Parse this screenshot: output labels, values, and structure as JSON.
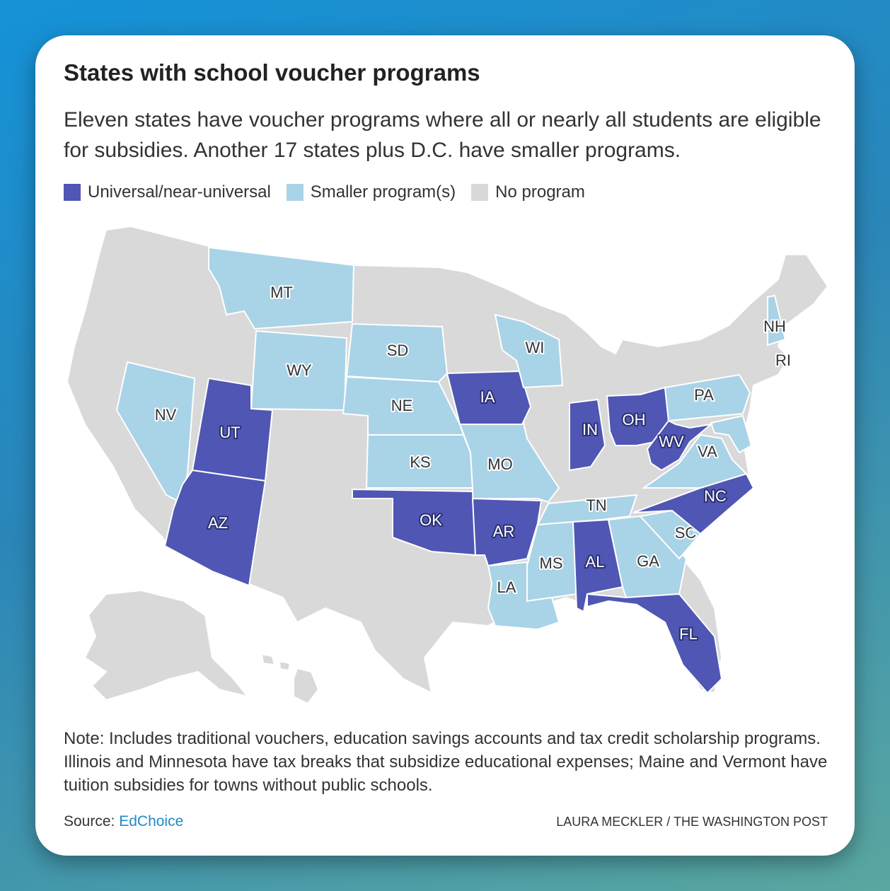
{
  "header": {
    "title": "States with school voucher programs",
    "subtitle": "Eleven states have voucher programs where all or nearly all students are eligible for subsidies. Another 17 states plus D.C. have smaller programs."
  },
  "legend": [
    {
      "label": "Universal/near-universal",
      "color": "#4f56b3"
    },
    {
      "label": "Smaller program(s)",
      "color": "#a9d3e7"
    },
    {
      "label": "No program",
      "color": "#d9d9d9"
    }
  ],
  "states": [
    {
      "label": "MT",
      "color": "#a9d3e7"
    },
    {
      "label": "WY",
      "color": "#a9d3e7"
    },
    {
      "label": "SD",
      "color": "#a9d3e7"
    },
    {
      "label": "NE",
      "color": "#a9d3e7"
    },
    {
      "label": "KS",
      "color": "#a9d3e7"
    },
    {
      "label": "MO",
      "color": "#a9d3e7"
    },
    {
      "label": "IA",
      "color": "#4f56b3"
    },
    {
      "label": "WI",
      "color": "#a9d3e7"
    },
    {
      "label": "NV",
      "color": "#a9d3e7"
    },
    {
      "label": "UT",
      "color": "#4f56b3"
    },
    {
      "label": "AZ",
      "color": "#4f56b3"
    },
    {
      "label": "OK",
      "color": "#4f56b3"
    },
    {
      "label": "AR",
      "color": "#4f56b3"
    },
    {
      "label": "TN",
      "color": "#a9d3e7"
    },
    {
      "label": "MS",
      "color": "#a9d3e7"
    },
    {
      "label": "AL",
      "color": "#4f56b3"
    },
    {
      "label": "GA",
      "color": "#a9d3e7"
    },
    {
      "label": "SC",
      "color": "#a9d3e7"
    },
    {
      "label": "NC",
      "color": "#4f56b3"
    },
    {
      "label": "LA",
      "color": "#a9d3e7"
    },
    {
      "label": "FL",
      "color": "#4f56b3"
    },
    {
      "label": "IN",
      "color": "#4f56b3"
    },
    {
      "label": "OH",
      "color": "#4f56b3"
    },
    {
      "label": "WV",
      "color": "#4f56b3"
    },
    {
      "label": "VA",
      "color": "#a9d3e7"
    },
    {
      "label": "PA",
      "color": "#a9d3e7"
    },
    {
      "label": "NH",
      "color": "#a9d3e7"
    },
    {
      "label": "RI",
      "color": "#d9d9d9"
    }
  ],
  "note": "Note: Includes traditional vouchers, education savings accounts and tax credit scholarship programs. Illinois and Minnesota have tax breaks that subsidize educational expenses; Maine and Vermont have tuition subsidies for towns without public schools.",
  "source": {
    "label": "Source:",
    "link": "EdChoice"
  },
  "credit": "LAURA MECKLER / THE WASHINGTON POST"
}
